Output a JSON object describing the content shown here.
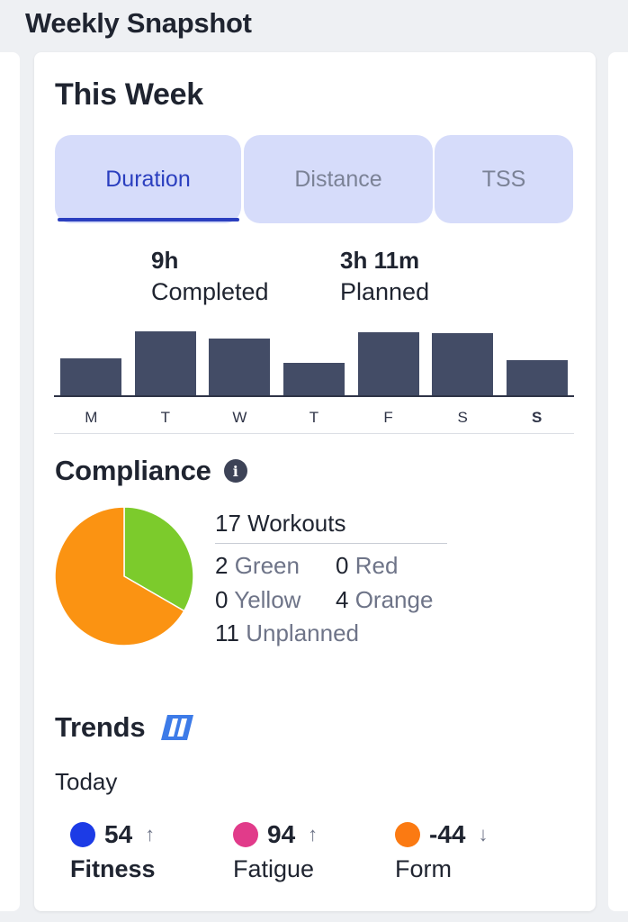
{
  "page": {
    "title": "Weekly Snapshot"
  },
  "this_week": {
    "title": "This Week",
    "tabs": [
      {
        "label": "Duration",
        "active": true
      },
      {
        "label": "Distance",
        "active": false
      },
      {
        "label": "TSS",
        "active": false
      }
    ],
    "completed": {
      "value": "9h",
      "label": "Completed"
    },
    "planned": {
      "value": "3h 11m",
      "label": "Planned"
    }
  },
  "chart_data": {
    "type": "bar",
    "categories": [
      "M",
      "T",
      "W",
      "T",
      "F",
      "S",
      "S"
    ],
    "values": [
      41,
      71,
      63,
      36,
      70,
      69,
      39
    ],
    "current_index": 6,
    "bar_color": "#434c66",
    "ylim": [
      0,
      100
    ]
  },
  "compliance": {
    "title": "Compliance",
    "total_label": "17 Workouts",
    "green": {
      "count": "2",
      "label": "Green",
      "value": 2,
      "color": "#7ccb2c"
    },
    "red": {
      "count": "0",
      "label": "Red",
      "value": 0,
      "color": "#e0402b"
    },
    "yellow": {
      "count": "0",
      "label": "Yellow",
      "value": 0,
      "color": "#f2c418"
    },
    "orange": {
      "count": "4",
      "label": "Orange",
      "value": 4,
      "color": "#fb9312"
    },
    "unplanned": {
      "count": "11",
      "label": "Unplanned"
    },
    "icons": {
      "info": "info-icon"
    }
  },
  "trends": {
    "title": "Trends",
    "period": "Today",
    "icon": "trainingpeaks-logo-icon",
    "metrics": [
      {
        "value": "54",
        "label": "Fitness",
        "color": "#1c3be6",
        "trend": "up",
        "arrow": "↑"
      },
      {
        "value": "94",
        "label": "Fatigue",
        "color": "#e13b8a",
        "trend": "up",
        "arrow": "↑"
      },
      {
        "value": "-44",
        "label": "Form",
        "color": "#fb7a12",
        "trend": "down",
        "arrow": "↓"
      }
    ]
  }
}
